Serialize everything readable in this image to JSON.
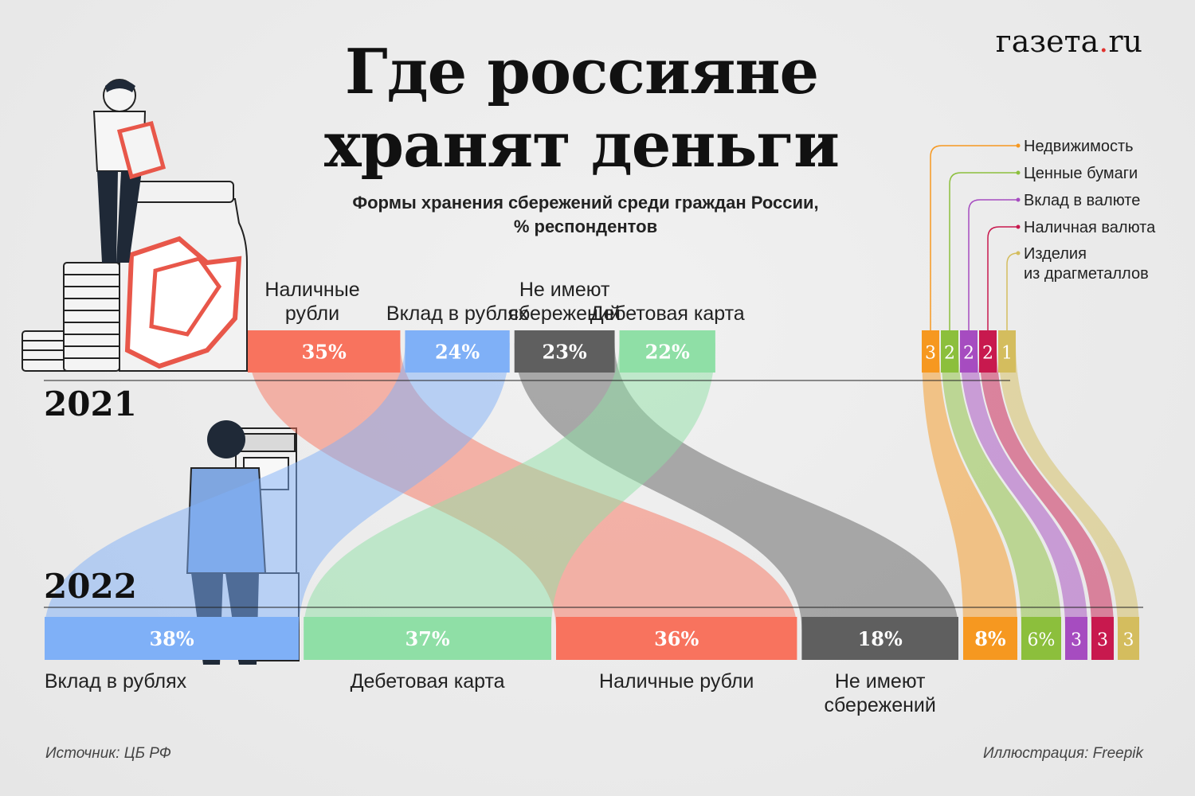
{
  "header": {
    "title_line1": "Где россияне",
    "title_line2": "хранят деньги",
    "subtitle_line1": "Формы хранения сбережений среди граждан России,",
    "subtitle_line2": "% респондентов",
    "logo_main": "газета",
    "logo_dot": ".",
    "logo_end": "ru"
  },
  "footer": {
    "source": "Источник: ЦБ РФ",
    "illustration": "Иллюстрация:  Freepik"
  },
  "chart_data": {
    "type": "sankey",
    "title": "Где россияне хранят деньги",
    "subtitle": "Формы хранения сбережений среди граждан России, % респондентов",
    "unit": "% респондентов",
    "years": [
      "2021",
      "2022"
    ],
    "categories_2021": [
      {
        "id": "cash",
        "label": "Наличные рубли",
        "label_lines": [
          "Наличные",
          "рубли"
        ],
        "value": 35,
        "display": "35%",
        "color": "#f8735e"
      },
      {
        "id": "dep_rub",
        "label": "Вклад в рублях",
        "label_lines": [
          "Вклад в рублях"
        ],
        "value": 24,
        "display": "24%",
        "color": "#7fb0f7"
      },
      {
        "id": "none",
        "label": "Не имеют сбережений",
        "label_lines": [
          "Не имеют",
          "сбережений"
        ],
        "value": 23,
        "display": "23%",
        "color": "#5f5f5f"
      },
      {
        "id": "debit",
        "label": "Дебетовая карта",
        "label_lines": [
          "Дебетовая карта"
        ],
        "value": 22,
        "display": "22%",
        "color": "#8fdfa6"
      },
      {
        "id": "realty",
        "label": "Недвижимость",
        "value": 3,
        "display": "3",
        "color": "#f69820"
      },
      {
        "id": "secur",
        "label": "Ценные бумаги",
        "value": 2,
        "display": "2",
        "color": "#8cbf3c"
      },
      {
        "id": "dep_fx",
        "label": "Вклад в валюте",
        "value": 2,
        "display": "2",
        "color": "#a64cc0"
      },
      {
        "id": "cash_fx",
        "label": "Наличная валюта",
        "value": 2,
        "display": "2",
        "color": "#c8194e"
      },
      {
        "id": "metal",
        "label": "Изделия из драгметаллов",
        "value": 1,
        "display": "1",
        "color": "#d4bd5e"
      }
    ],
    "categories_2022": [
      {
        "id": "dep_rub",
        "label": "Вклад в рублях",
        "label_lines": [
          "Вклад в рублях"
        ],
        "value": 38,
        "display": "38%"
      },
      {
        "id": "debit",
        "label": "Дебетовая карта",
        "label_lines": [
          "Дебетовая карта"
        ],
        "value": 37,
        "display": "37%"
      },
      {
        "id": "cash",
        "label": "Наличные рубли",
        "label_lines": [
          "Наличные рубли"
        ],
        "value": 36,
        "display": "36%"
      },
      {
        "id": "none",
        "label": "Не имеют сбережений",
        "label_lines": [
          "Не имеют",
          "сбережений"
        ],
        "value": 18,
        "display": "18%"
      },
      {
        "id": "realty",
        "label": "Недвижимость",
        "value": 8,
        "display": "8%"
      },
      {
        "id": "secur",
        "label": "Ценные бумаги",
        "value": 6,
        "display": "6%"
      },
      {
        "id": "dep_fx",
        "label": "Вклад в валюте",
        "value": 3,
        "display": "3"
      },
      {
        "id": "cash_fx",
        "label": "Наличная валюта",
        "value": 3,
        "display": "3"
      },
      {
        "id": "metal",
        "label": "Изделия из драгметаллов",
        "value": 3,
        "display": "3"
      }
    ],
    "legend": [
      {
        "id": "realty",
        "lines": [
          "Недвижимость"
        ]
      },
      {
        "id": "secur",
        "lines": [
          "Ценные бумаги"
        ]
      },
      {
        "id": "dep_fx",
        "lines": [
          "Вклад в валюте"
        ]
      },
      {
        "id": "cash_fx",
        "lines": [
          "Наличная валюта"
        ]
      },
      {
        "id": "metal",
        "lines": [
          "Изделия",
          "из драгметаллов"
        ]
      }
    ]
  }
}
